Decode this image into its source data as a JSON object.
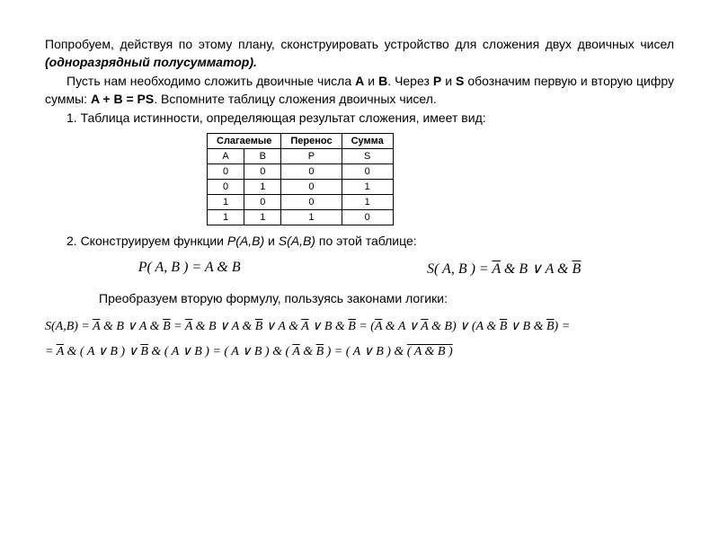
{
  "para1": "Попробуем, действуя по этому плану, сконструировать устройство для сложения двух двоичных чисел ",
  "para1_emph": "(одноразрядный полусумматор).",
  "para2_a": "Пусть нам необходимо сложить двоичные числа ",
  "para2_b": " и ",
  "para2_c": ". Через ",
  "para2_d": " и ",
  "para2_e": " обозначим первую и вторую цифру суммы: ",
  "para2_f": ". Вспомните таблицу сложения двоичных чисел.",
  "A": "A",
  "B": "B",
  "P": "P",
  "S": "S",
  "eqn_sum": "A + B = PS",
  "step1": "1. Таблица истинности, определяющая результат сложения, имеет вид:",
  "table": {
    "h1": "Слагаемые",
    "h2": "Перенос",
    "h3": "Сумма",
    "c_A": "A",
    "c_B": "B",
    "c_P": "P",
    "c_S": "S",
    "rows": [
      [
        "0",
        "0",
        "0",
        "0"
      ],
      [
        "0",
        "1",
        "0",
        "1"
      ],
      [
        "1",
        "0",
        "0",
        "1"
      ],
      [
        "1",
        "1",
        "1",
        "0"
      ]
    ]
  },
  "step2_a": "2. Сконструируем функции ",
  "step2_b": " и ",
  "step2_c": " по этой таблице:",
  "fn_P": "P(A,B)",
  "fn_S": "S(A,B)",
  "formula_P": "P( A, B ) = A & B",
  "formula_S_lhs": "S( A, B ) = ",
  "step3": "Преобразуем вторую формулу, пользуясь законами логики:"
}
